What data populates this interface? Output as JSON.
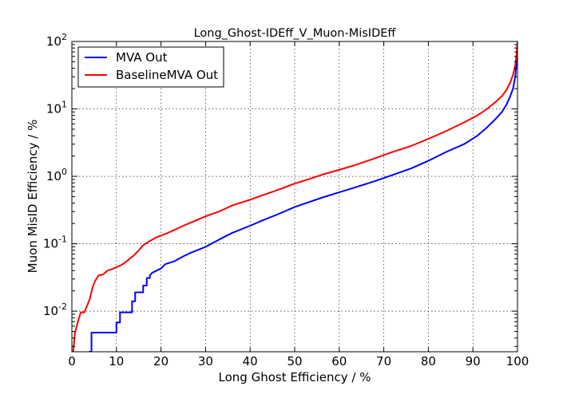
{
  "chart_data": {
    "type": "line",
    "title": "Long_Ghost-IDEff_V_Muon-MisIDEff",
    "xlabel": "Long Ghost Efficiency / %",
    "ylabel": "Muon MisID Efficiency / %",
    "xlim": [
      0,
      100
    ],
    "ylim": [
      0.0025,
      100
    ],
    "yscale": "log",
    "grid": true,
    "legend_position": "top-left",
    "x_ticks": [
      "0",
      "10",
      "20",
      "30",
      "40",
      "50",
      "60",
      "70",
      "80",
      "90",
      "100"
    ],
    "y_ticks": [
      {
        "base": "10",
        "exp": "-2",
        "value": 0.01
      },
      {
        "base": "10",
        "exp": "-1",
        "value": 0.1
      },
      {
        "base": "10",
        "exp": "0",
        "value": 1
      },
      {
        "base": "10",
        "exp": "1",
        "value": 10
      },
      {
        "base": "10",
        "exp": "2",
        "value": 100
      }
    ],
    "series": [
      {
        "name": "MVA Out",
        "color": "#0000ff",
        "points": [
          [
            3.8,
            0.0025
          ],
          [
            4.4,
            0.0025
          ],
          [
            4.4,
            0.0048
          ],
          [
            10,
            0.0048
          ],
          [
            10,
            0.0068
          ],
          [
            10.8,
            0.0068
          ],
          [
            10.8,
            0.0096
          ],
          [
            13.5,
            0.0096
          ],
          [
            13.5,
            0.014
          ],
          [
            14.2,
            0.014
          ],
          [
            14.2,
            0.019
          ],
          [
            16,
            0.019
          ],
          [
            16,
            0.024
          ],
          [
            16.8,
            0.024
          ],
          [
            16.8,
            0.031
          ],
          [
            17.5,
            0.031
          ],
          [
            17.5,
            0.034
          ],
          [
            18,
            0.037
          ],
          [
            20,
            0.043
          ],
          [
            21,
            0.05
          ],
          [
            23,
            0.055
          ],
          [
            25,
            0.065
          ],
          [
            27,
            0.075
          ],
          [
            30,
            0.09
          ],
          [
            33,
            0.115
          ],
          [
            36,
            0.145
          ],
          [
            40,
            0.185
          ],
          [
            43,
            0.225
          ],
          [
            46,
            0.27
          ],
          [
            50,
            0.35
          ],
          [
            53,
            0.41
          ],
          [
            56,
            0.48
          ],
          [
            60,
            0.58
          ],
          [
            64,
            0.7
          ],
          [
            68,
            0.85
          ],
          [
            72,
            1.05
          ],
          [
            76,
            1.3
          ],
          [
            80,
            1.7
          ],
          [
            84,
            2.3
          ],
          [
            88,
            3.0
          ],
          [
            91,
            4.0
          ],
          [
            93,
            5.2
          ],
          [
            95,
            7.0
          ],
          [
            96.5,
            9.0
          ],
          [
            97.5,
            11.5
          ],
          [
            98.3,
            15
          ],
          [
            99,
            20
          ],
          [
            99.5,
            30
          ],
          [
            99.8,
            50
          ],
          [
            100,
            95
          ]
        ]
      },
      {
        "name": "BaselineMVA Out",
        "color": "#ff0000",
        "points": [
          [
            0,
            0.0025
          ],
          [
            0.3,
            0.0025
          ],
          [
            0.7,
            0.0048
          ],
          [
            1.3,
            0.0068
          ],
          [
            2,
            0.0096
          ],
          [
            2.8,
            0.0096
          ],
          [
            3.4,
            0.012
          ],
          [
            4,
            0.015
          ],
          [
            4.6,
            0.022
          ],
          [
            5.2,
            0.028
          ],
          [
            6,
            0.034
          ],
          [
            7,
            0.035
          ],
          [
            8,
            0.04
          ],
          [
            9,
            0.042
          ],
          [
            10,
            0.045
          ],
          [
            11,
            0.048
          ],
          [
            12,
            0.053
          ],
          [
            13,
            0.06
          ],
          [
            14,
            0.068
          ],
          [
            15,
            0.08
          ],
          [
            16,
            0.095
          ],
          [
            17.5,
            0.11
          ],
          [
            19,
            0.125
          ],
          [
            21,
            0.14
          ],
          [
            23,
            0.16
          ],
          [
            25,
            0.185
          ],
          [
            27,
            0.21
          ],
          [
            30,
            0.255
          ],
          [
            33,
            0.3
          ],
          [
            36,
            0.37
          ],
          [
            40,
            0.45
          ],
          [
            43,
            0.53
          ],
          [
            46,
            0.62
          ],
          [
            50,
            0.78
          ],
          [
            53,
            0.9
          ],
          [
            56,
            1.05
          ],
          [
            60,
            1.25
          ],
          [
            64,
            1.5
          ],
          [
            68,
            1.85
          ],
          [
            72,
            2.3
          ],
          [
            76,
            2.8
          ],
          [
            80,
            3.6
          ],
          [
            84,
            4.7
          ],
          [
            88,
            6.3
          ],
          [
            91,
            8.0
          ],
          [
            93,
            9.8
          ],
          [
            95,
            12.5
          ],
          [
            96.5,
            15.5
          ],
          [
            97.5,
            19
          ],
          [
            98.3,
            24
          ],
          [
            99,
            32
          ],
          [
            99.5,
            45
          ],
          [
            99.8,
            65
          ],
          [
            100,
            98
          ]
        ]
      }
    ]
  }
}
